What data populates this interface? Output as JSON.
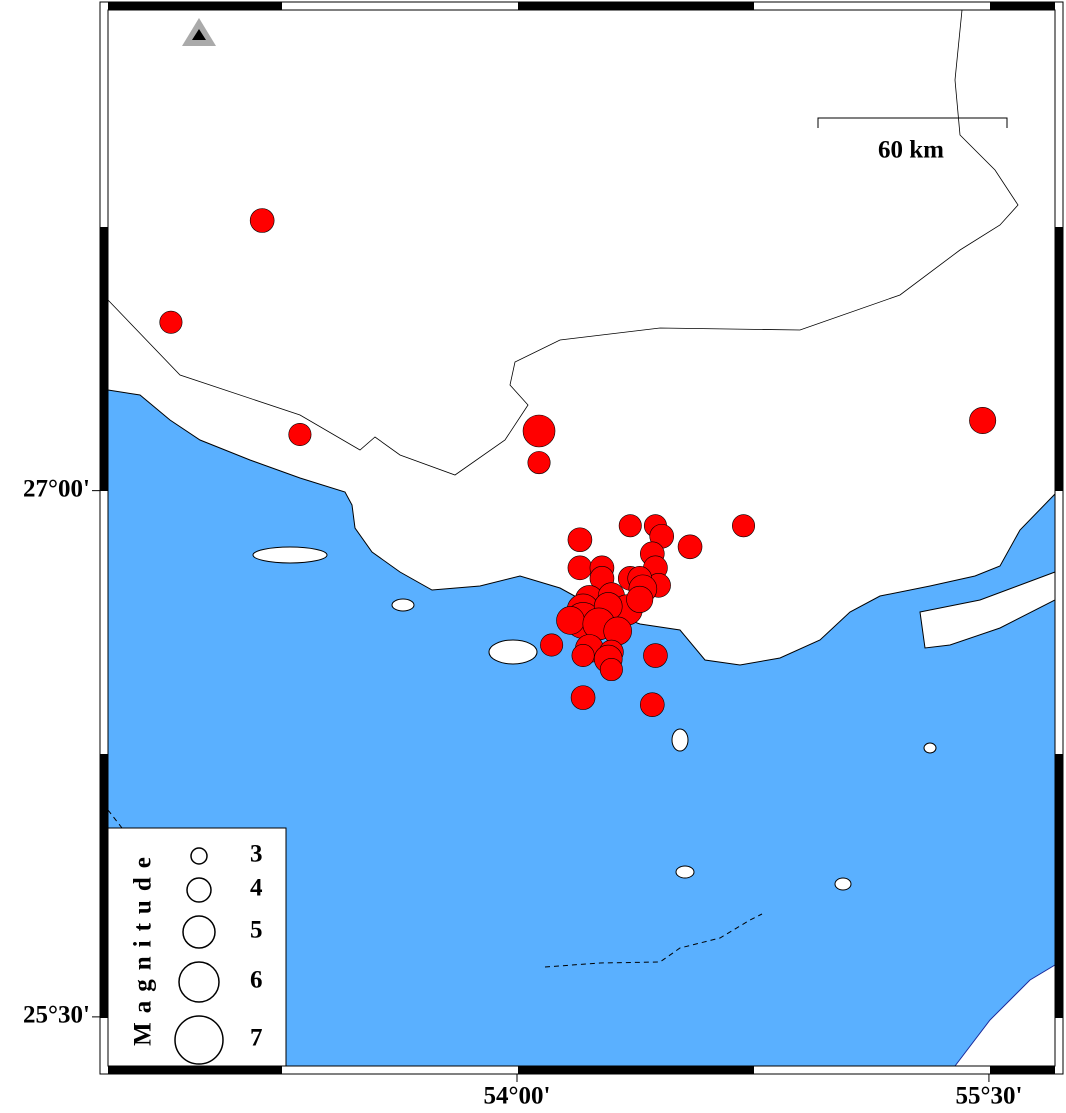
{
  "map": {
    "lon_lim": [
      52.7,
      55.71
    ],
    "lat_lim": [
      25.36,
      28.37
    ],
    "lon_ticks": [
      {
        "value": 54,
        "label": "54°00'"
      },
      {
        "value": 55.5,
        "label": "55°30'"
      }
    ],
    "lat_ticks": [
      {
        "value": 27,
        "label": "27°00'"
      },
      {
        "value": 25.5,
        "label": "25°30'"
      }
    ],
    "scale_bar": "60 km",
    "event_color": "#ff0000",
    "sea_color": "#5ab0ff",
    "events": {
      "lon": [
        53.19,
        52.9,
        53.31,
        54.07,
        54.07,
        55.48,
        54.72,
        54.36,
        54.44,
        54.46,
        54.2,
        54.55,
        54.43,
        54.2,
        54.27,
        54.27,
        54.36,
        54.44,
        54.45,
        54.39,
        54.4,
        54.23,
        54.3,
        54.21,
        54.21,
        54.17,
        54.35,
        54.29,
        54.26,
        54.32,
        54.11,
        54.23,
        54.3,
        54.21,
        54.29,
        54.3,
        54.44,
        54.21,
        54.43,
        54.39
      ],
      "lat": [
        27.77,
        27.48,
        27.16,
        27.17,
        27.08,
        27.2,
        26.9,
        26.9,
        26.9,
        26.87,
        26.86,
        26.84,
        26.82,
        26.78,
        26.78,
        26.75,
        26.75,
        26.78,
        26.73,
        26.75,
        26.72,
        26.69,
        26.7,
        26.66,
        26.63,
        26.63,
        26.66,
        26.67,
        26.62,
        26.6,
        26.56,
        26.55,
        26.54,
        26.53,
        26.52,
        26.49,
        26.53,
        26.41,
        26.39,
        26.69
      ],
      "mag": [
        4,
        3.8,
        3.8,
        5,
        3.8,
        4.3,
        3.8,
        3.8,
        3.8,
        4,
        4,
        4,
        4,
        4,
        4,
        4,
        4,
        4,
        4,
        4,
        4.5,
        4.5,
        4.3,
        5,
        5.5,
        4.5,
        4.8,
        4.5,
        5,
        4.5,
        3.8,
        4.5,
        4,
        3.8,
        4.5,
        3.8,
        4,
        4,
        4,
        4.3
      ]
    },
    "legend": {
      "title": "Magnitude",
      "sizes": [
        3,
        4,
        5,
        6,
        7
      ]
    }
  }
}
